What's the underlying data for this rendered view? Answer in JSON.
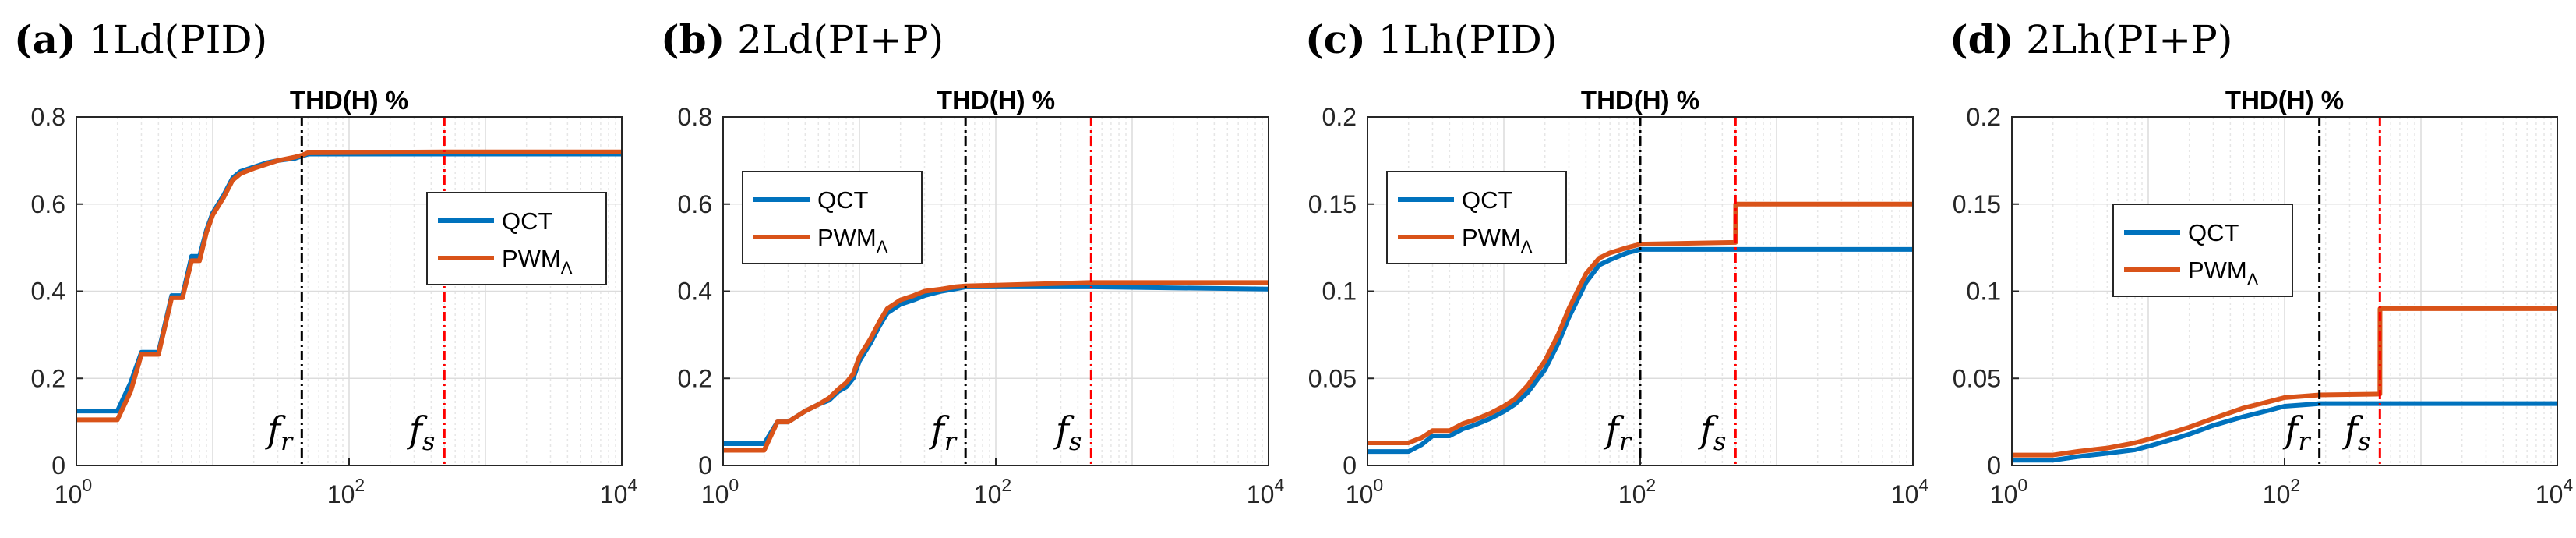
{
  "figure": {
    "colors": {
      "qct": "#0072BD",
      "pwm": "#D95319",
      "fr_line": "#000000",
      "fs_line": "#FF0000",
      "grid": "#dcdcdc",
      "axis": "#262626"
    }
  },
  "chart_data": [
    {
      "type": "line",
      "panel_letter": "(a)",
      "panel_title": "1Ld(PID)",
      "title": "THD(H) %",
      "xscale": "log",
      "xlim": [
        1,
        10000
      ],
      "ylim": [
        0,
        0.8
      ],
      "yticks": [
        "0",
        "0.2",
        "0.4",
        "0.6",
        "0.8"
      ],
      "xtick_exponents": [
        "0",
        "2",
        "4"
      ],
      "xticks_base": "10",
      "vlines": [
        {
          "name": "f_r",
          "x": 45
        },
        {
          "name": "f_s",
          "x": 500
        }
      ],
      "vline_label_base": "f",
      "vline_subscripts": [
        "r",
        "s"
      ],
      "legend": {
        "position": "center-right",
        "entries": [
          "QCT",
          "PWM"
        ],
        "pwm_subscript": "Λ"
      },
      "series": [
        {
          "name": "QCT",
          "x": [
            1,
            2,
            2.5,
            3,
            4,
            5,
            6,
            7,
            8,
            9,
            10,
            12,
            14,
            16,
            20,
            25,
            30,
            40,
            45,
            50,
            500,
            10000
          ],
          "values": [
            0.125,
            0.125,
            0.19,
            0.26,
            0.26,
            0.39,
            0.39,
            0.48,
            0.48,
            0.54,
            0.58,
            0.62,
            0.66,
            0.675,
            0.685,
            0.695,
            0.7,
            0.705,
            0.71,
            0.715,
            0.715,
            0.715
          ]
        },
        {
          "name": "PWM",
          "x": [
            1,
            2,
            2.5,
            3,
            4,
            5,
            6,
            7,
            8,
            9,
            10,
            12,
            14,
            16,
            20,
            25,
            30,
            40,
            45,
            50,
            500,
            10000
          ],
          "values": [
            0.105,
            0.105,
            0.17,
            0.255,
            0.255,
            0.385,
            0.385,
            0.47,
            0.47,
            0.535,
            0.575,
            0.615,
            0.655,
            0.67,
            0.682,
            0.692,
            0.7,
            0.708,
            0.712,
            0.718,
            0.72,
            0.72
          ]
        }
      ]
    },
    {
      "type": "line",
      "panel_letter": "(b)",
      "panel_title": "2Ld(PI+P)",
      "title": "THD(H) %",
      "xscale": "log",
      "xlim": [
        1,
        10000
      ],
      "ylim": [
        0,
        0.8
      ],
      "yticks": [
        "0",
        "0.2",
        "0.4",
        "0.6",
        "0.8"
      ],
      "xtick_exponents": [
        "0",
        "2",
        "4"
      ],
      "xticks_base": "10",
      "vlines": [
        {
          "name": "f_r",
          "x": 60
        },
        {
          "name": "f_s",
          "x": 500
        }
      ],
      "vline_label_base": "f",
      "vline_subscripts": [
        "r",
        "s"
      ],
      "legend": {
        "position": "top-left",
        "entries": [
          "QCT",
          "PWM"
        ],
        "pwm_subscript": "Λ"
      },
      "series": [
        {
          "name": "QCT",
          "x": [
            1,
            2,
            2.5,
            3,
            4,
            5,
            6,
            7,
            8,
            9,
            10,
            12,
            14,
            16,
            20,
            25,
            30,
            40,
            50,
            60,
            500,
            10000
          ],
          "values": [
            0.05,
            0.05,
            0.1,
            0.1,
            0.125,
            0.14,
            0.15,
            0.17,
            0.18,
            0.2,
            0.24,
            0.28,
            0.32,
            0.35,
            0.37,
            0.38,
            0.39,
            0.4,
            0.405,
            0.41,
            0.41,
            0.405
          ]
        },
        {
          "name": "PWM",
          "x": [
            1,
            2,
            2.5,
            3,
            4,
            5,
            6,
            7,
            8,
            9,
            10,
            12,
            14,
            16,
            20,
            25,
            30,
            40,
            50,
            60,
            500,
            10000
          ],
          "values": [
            0.035,
            0.035,
            0.1,
            0.1,
            0.125,
            0.14,
            0.155,
            0.175,
            0.19,
            0.21,
            0.25,
            0.29,
            0.33,
            0.36,
            0.38,
            0.39,
            0.4,
            0.405,
            0.41,
            0.412,
            0.42,
            0.42
          ]
        }
      ]
    },
    {
      "type": "line",
      "panel_letter": "(c)",
      "panel_title": "1Lh(PID)",
      "title": "THD(H) %",
      "xscale": "log",
      "xlim": [
        1,
        10000
      ],
      "ylim": [
        0,
        0.2
      ],
      "yticks": [
        "0",
        "0.05",
        "0.1",
        "0.15",
        "0.2"
      ],
      "xtick_exponents": [
        "0",
        "2",
        "4"
      ],
      "xticks_base": "10",
      "vlines": [
        {
          "name": "f_r",
          "x": 100
        },
        {
          "name": "f_s",
          "x": 500
        }
      ],
      "vline_label_base": "f",
      "vline_subscripts": [
        "r",
        "s"
      ],
      "legend": {
        "position": "top-left",
        "entries": [
          "QCT",
          "PWM"
        ],
        "pwm_subscript": "Λ"
      },
      "series": [
        {
          "name": "QCT",
          "x": [
            1,
            2,
            2.5,
            3,
            4,
            5,
            6,
            8,
            10,
            12,
            15,
            20,
            25,
            30,
            40,
            50,
            60,
            80,
            100,
            500,
            10000
          ],
          "values": [
            0.008,
            0.008,
            0.012,
            0.017,
            0.017,
            0.021,
            0.023,
            0.027,
            0.031,
            0.035,
            0.042,
            0.055,
            0.07,
            0.085,
            0.105,
            0.115,
            0.118,
            0.122,
            0.124,
            0.124,
            0.124
          ]
        },
        {
          "name": "PWM",
          "x": [
            1,
            2,
            2.5,
            3,
            4,
            5,
            6,
            8,
            10,
            12,
            15,
            20,
            25,
            30,
            40,
            50,
            60,
            80,
            100,
            500,
            501,
            10000
          ],
          "values": [
            0.013,
            0.013,
            0.016,
            0.02,
            0.02,
            0.024,
            0.026,
            0.03,
            0.034,
            0.038,
            0.046,
            0.06,
            0.075,
            0.09,
            0.11,
            0.119,
            0.122,
            0.125,
            0.127,
            0.128,
            0.15,
            0.15
          ]
        }
      ]
    },
    {
      "type": "line",
      "panel_letter": "(d)",
      "panel_title": "2Lh(PI+P)",
      "title": "THD(H) %",
      "xscale": "log",
      "xlim": [
        1,
        10000
      ],
      "ylim": [
        0,
        0.2
      ],
      "yticks": [
        "0",
        "0.05",
        "0.1",
        "0.15",
        "0.2"
      ],
      "xtick_exponents": [
        "0",
        "2",
        "4"
      ],
      "xticks_base": "10",
      "vlines": [
        {
          "name": "f_r",
          "x": 180
        },
        {
          "name": "f_s",
          "x": 500
        }
      ],
      "vline_label_base": "f",
      "vline_subscripts": [
        "r",
        "s"
      ],
      "legend": {
        "position": "center-left",
        "entries": [
          "QCT",
          "PWM"
        ],
        "pwm_subscript": "Λ"
      },
      "series": [
        {
          "name": "QCT",
          "x": [
            1,
            2,
            3,
            5,
            8,
            10,
            15,
            20,
            30,
            50,
            80,
            100,
            150,
            180,
            500,
            10000
          ],
          "values": [
            0.003,
            0.003,
            0.005,
            0.007,
            0.009,
            0.011,
            0.015,
            0.018,
            0.023,
            0.028,
            0.032,
            0.034,
            0.035,
            0.0355,
            0.0355,
            0.0355
          ]
        },
        {
          "name": "PWM",
          "x": [
            1,
            2,
            3,
            5,
            8,
            10,
            15,
            20,
            30,
            50,
            80,
            100,
            150,
            180,
            500,
            501,
            10000
          ],
          "values": [
            0.006,
            0.006,
            0.008,
            0.01,
            0.013,
            0.015,
            0.019,
            0.022,
            0.027,
            0.033,
            0.037,
            0.039,
            0.04,
            0.0405,
            0.041,
            0.09,
            0.09
          ]
        }
      ]
    }
  ]
}
